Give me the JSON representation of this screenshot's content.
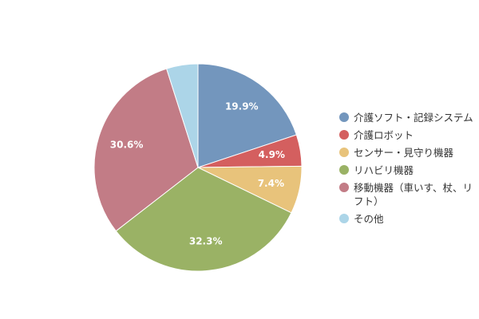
{
  "chart_data": {
    "type": "pie",
    "categories": [
      "介護ソフト・記録システム",
      "介護ロボット",
      "センサー・見守り機器",
      "リハビリ機器",
      "移動機器（車いす、杖、リフト）",
      "その他"
    ],
    "values": [
      19.9,
      4.9,
      7.4,
      32.3,
      30.6,
      4.9
    ],
    "value_labels": [
      "19.9%",
      "4.9%",
      "7.4%",
      "32.3%",
      "30.6%",
      null
    ],
    "colors": [
      "#7396bd",
      "#d45f5f",
      "#e8c37b",
      "#9ab265",
      "#c27c86",
      "#acd5e8"
    ],
    "legend": "right"
  }
}
